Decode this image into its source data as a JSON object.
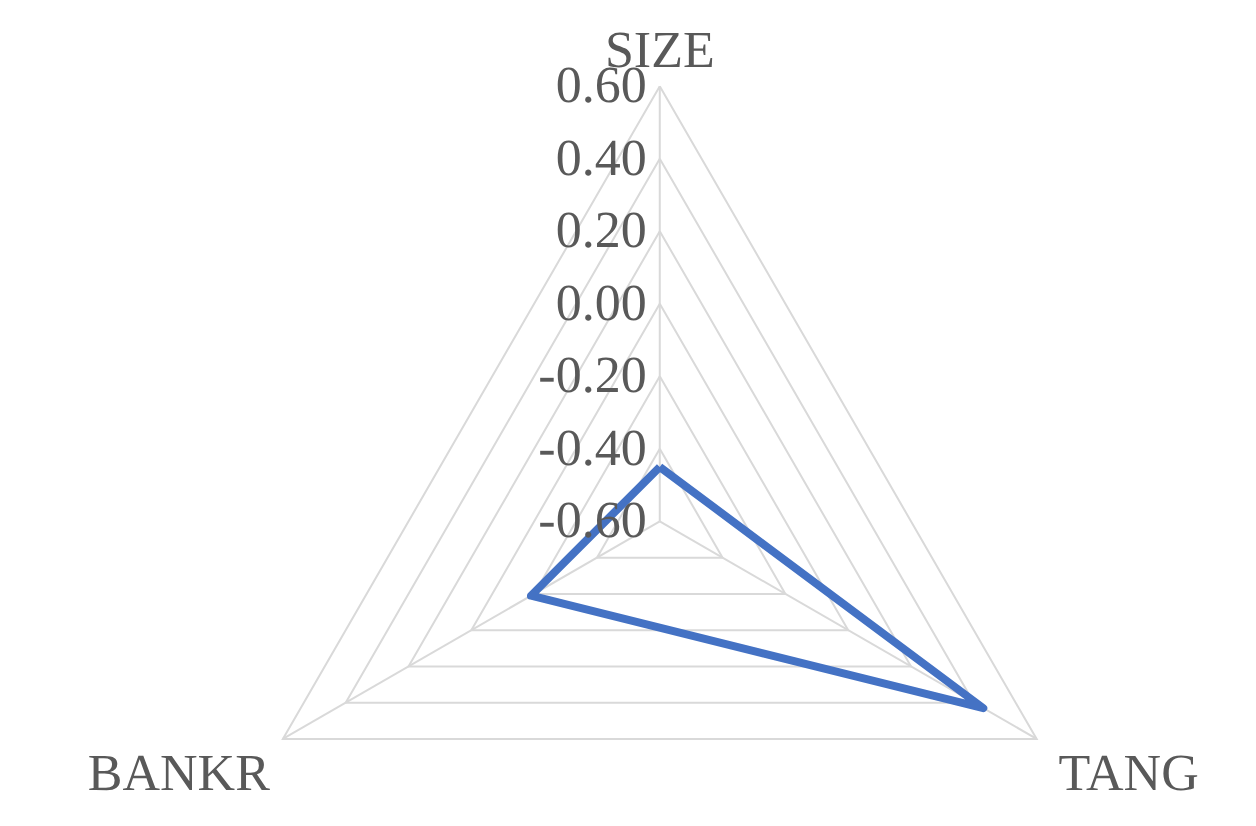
{
  "chart_data": {
    "type": "radar",
    "categories": [
      "SIZE",
      "TANG",
      "BANKR"
    ],
    "series": [
      {
        "color": "#4472c4",
        "values": [
          -0.45,
          0.43,
          -0.19
        ]
      }
    ],
    "ylim": [
      -0.6,
      0.6
    ],
    "yticks": [
      {
        "value": -0.6,
        "label": "-0.60"
      },
      {
        "value": -0.4,
        "label": "-0.40"
      },
      {
        "value": -0.2,
        "label": "-0.20"
      },
      {
        "value": 0.0,
        "label": "0.00"
      },
      {
        "value": 0.2,
        "label": "0.20"
      },
      {
        "value": 0.4,
        "label": "0.40"
      },
      {
        "value": 0.6,
        "label": "0.60"
      }
    ],
    "grid": true,
    "marker": "none",
    "line_style": "solid"
  }
}
